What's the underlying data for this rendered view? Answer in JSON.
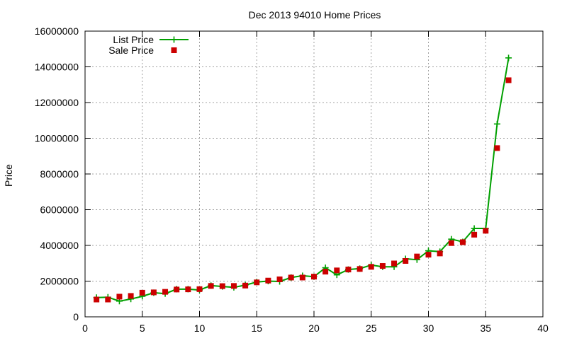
{
  "chart_data": {
    "type": "line",
    "title": "Dec 2013 94010 Home Prices",
    "xlabel": "",
    "ylabel": "Price",
    "xlim": [
      0,
      40
    ],
    "ylim": [
      0,
      16000000
    ],
    "xticks": [
      0,
      5,
      10,
      15,
      20,
      25,
      30,
      35,
      40
    ],
    "yticks": [
      0,
      2000000,
      4000000,
      6000000,
      8000000,
      10000000,
      12000000,
      14000000,
      16000000
    ],
    "grid": true,
    "legend_position": "top-left",
    "series": [
      {
        "name": "List Price",
        "style": "line-with-plus-markers",
        "color": "#00a000",
        "x": [
          1,
          2,
          3,
          4,
          5,
          6,
          7,
          8,
          9,
          10,
          11,
          12,
          13,
          14,
          15,
          16,
          17,
          18,
          19,
          20,
          21,
          22,
          23,
          24,
          25,
          26,
          27,
          28,
          29,
          30,
          31,
          32,
          33,
          34,
          35,
          36,
          37
        ],
        "y": [
          1080000,
          1100000,
          880000,
          1000000,
          1150000,
          1350000,
          1300000,
          1550000,
          1550000,
          1500000,
          1750000,
          1700000,
          1650000,
          1780000,
          1950000,
          2000000,
          1980000,
          2200000,
          2300000,
          2250000,
          2750000,
          2350000,
          2650000,
          2700000,
          2900000,
          2800000,
          2800000,
          3250000,
          3200000,
          3700000,
          3650000,
          4350000,
          4200000,
          4950000,
          4950000,
          10800000,
          14500000
        ]
      },
      {
        "name": "Sale Price",
        "style": "square-markers",
        "color": "#cc0000",
        "x": [
          1,
          2,
          3,
          4,
          5,
          6,
          7,
          8,
          9,
          10,
          11,
          12,
          13,
          14,
          15,
          16,
          17,
          18,
          19,
          20,
          21,
          22,
          23,
          24,
          25,
          26,
          27,
          28,
          29,
          30,
          31,
          32,
          33,
          34,
          35,
          36,
          37
        ],
        "y": [
          970000,
          970000,
          1130000,
          1170000,
          1350000,
          1370000,
          1400000,
          1530000,
          1540000,
          1550000,
          1730000,
          1720000,
          1730000,
          1750000,
          1930000,
          2030000,
          2100000,
          2200000,
          2200000,
          2250000,
          2530000,
          2600000,
          2650000,
          2680000,
          2800000,
          2850000,
          2990000,
          3130000,
          3380000,
          3480000,
          3550000,
          4130000,
          4180000,
          4600000,
          4820000,
          9450000,
          13250000
        ]
      }
    ]
  }
}
